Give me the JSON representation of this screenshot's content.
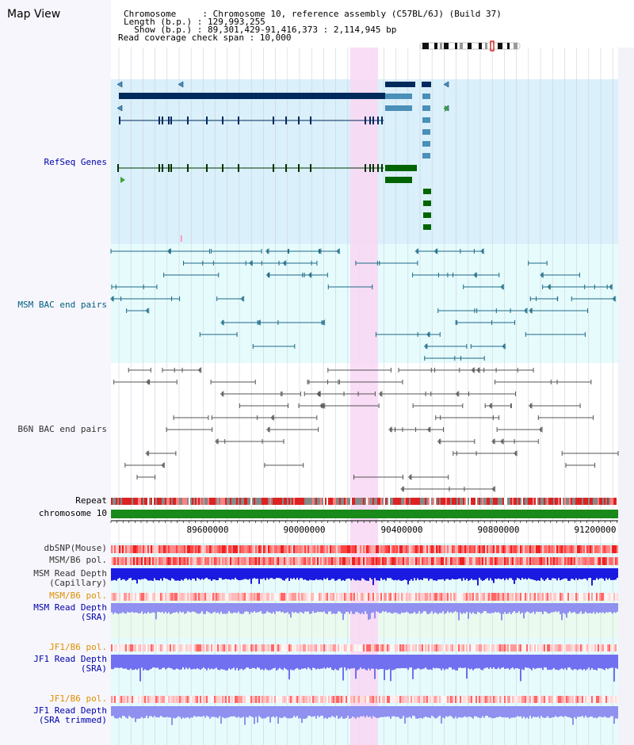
{
  "title": "Map View",
  "header": {
    "chromosome_label": "Chromosome     : Chromosome 10, reference assembly (C57BL/6J) (Build 37)",
    "length_label": "Length (b.p.) : 129,993,255",
    "show_label": "  Show (b.p.) : 89,301,429-91,416,373 : 2,114,945 bp",
    "coverage_label": "Read coverage check span : 10,000"
  },
  "tracks": {
    "refseq": "RefSeq Genes",
    "msm_bac": "MSM BAC end pairs",
    "b6n_bac": "B6N BAC end pairs",
    "repeat": "Repeat",
    "chromosome": "chromosome 10",
    "dbsnp": "dbSNP(Mouse)",
    "msm_b6_pol_1": "MSM/B6 pol.",
    "msm_read_depth_cap_1": "MSM Read Depth",
    "msm_read_depth_cap_2": "(Capillary)",
    "msm_b6_pol_2": "MSM/B6 pol.",
    "msm_read_depth_sra_1": "MSM Read Depth",
    "msm_read_depth_sra_2": "(SRA)",
    "jf1_b6_pol_1": "JF1/B6 pol.",
    "jf1_read_depth_sra_1": "JF1 Read Depth",
    "jf1_read_depth_sra_2": "(SRA)",
    "jf1_b6_pol_2": "JF1/B6 pol.",
    "jf1_read_depth_trim_1": "JF1 Read Depth",
    "jf1_read_depth_trim_2": "(SRA trimmed)"
  },
  "axis": {
    "ticks": [
      "89600000",
      "90000000",
      "90400000",
      "90800000",
      "91200000"
    ]
  },
  "colors": {
    "label_blue": "#0000aa",
    "label_teal": "#006080",
    "label_gray": "#333333",
    "label_orange": "#e09000",
    "highlight": "#f8d8f4",
    "gene_dark": "#002a5c",
    "gene_mid": "#4a90b8",
    "gene_green": "#006400"
  }
}
